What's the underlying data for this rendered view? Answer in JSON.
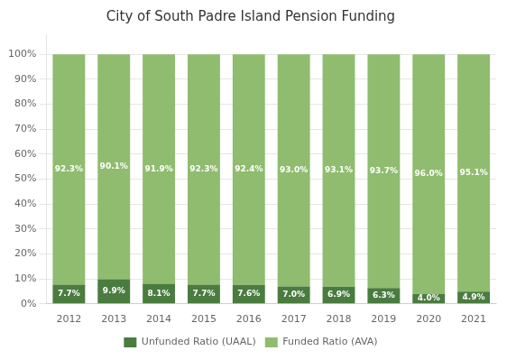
{
  "chart_data": {
    "type": "bar",
    "title": "City of South Padre Island Pension Funding",
    "categories": [
      "2012",
      "2013",
      "2014",
      "2015",
      "2016",
      "2017",
      "2018",
      "2019",
      "2020",
      "2021"
    ],
    "series": [
      {
        "name": "Unfunded Ratio (UAAL)",
        "color": "#4a7c3f",
        "values": [
          7.7,
          9.9,
          8.1,
          7.7,
          7.6,
          7.0,
          6.9,
          6.3,
          4.0,
          4.9
        ],
        "value_labels": [
          "7.7%",
          "9.9%",
          "8.1%",
          "7.7%",
          "7.6%",
          "7.0%",
          "6.9%",
          "6.3%",
          "4.0%",
          "4.9%"
        ]
      },
      {
        "name": "Funded Ratio (AVA)",
        "color": "#8fbc6e",
        "values": [
          92.3,
          90.1,
          91.9,
          92.3,
          92.4,
          93.0,
          93.1,
          93.7,
          96.0,
          95.1
        ],
        "value_labels": [
          "92.3%",
          "90.1%",
          "91.9%",
          "92.3%",
          "92.4%",
          "93.0%",
          "93.1%",
          "93.7%",
          "96.0%",
          "95.1%"
        ]
      }
    ],
    "stacked": true,
    "data_labels": true,
    "ylim": [
      0,
      108
    ],
    "yticks": [
      {
        "value": 0,
        "label": "0%"
      },
      {
        "value": 10,
        "label": "10%"
      },
      {
        "value": 20,
        "label": "20%"
      },
      {
        "value": 30,
        "label": "30%"
      },
      {
        "value": 40,
        "label": "40%"
      },
      {
        "value": 50,
        "label": "50%"
      },
      {
        "value": 60,
        "label": "60%"
      },
      {
        "value": 70,
        "label": "70%"
      },
      {
        "value": 80,
        "label": "80%"
      },
      {
        "value": 90,
        "label": "90%"
      },
      {
        "value": 100,
        "label": "100%"
      }
    ],
    "grid": true,
    "legend": "bottom"
  }
}
